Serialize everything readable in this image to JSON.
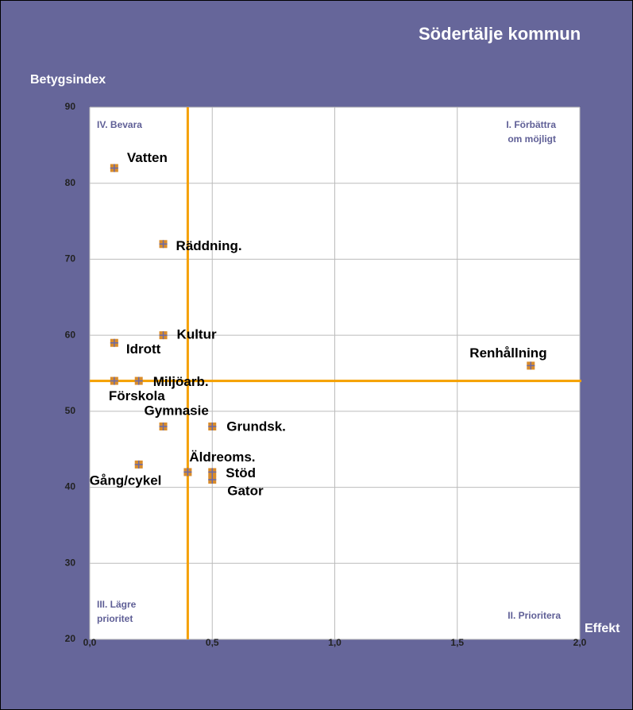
{
  "chart_data": {
    "type": "scatter",
    "title": "Södertälje kommun",
    "ylabel": "Betygsindex",
    "xlabel": "Effekt",
    "series": [
      {
        "color": "#d98c2b",
        "labels": [
          "Vatten",
          "Räddning.",
          "Kultur",
          "Idrott",
          "Förskola",
          "Miljöarb.",
          "Gymnasie",
          "Grundsk.",
          "Gång/cykel",
          "Äldreoms.",
          "Stöd",
          "Gator",
          "Renhållning"
        ],
        "x": [
          0.1,
          0.3,
          0.3,
          0.1,
          0.1,
          0.2,
          0.3,
          0.5,
          0.2,
          0.4,
          0.5,
          0.5,
          1.8
        ],
        "values": [
          82,
          72,
          60,
          59,
          54,
          54,
          48,
          48,
          43,
          42,
          42,
          41,
          56
        ]
      }
    ],
    "reference_lines": {
      "x": 0.4,
      "y": 54,
      "color": "#f5a000"
    },
    "quadrant_labels": [
      [
        "IV. Bevara"
      ],
      [
        "I. Förbättra",
        "om möjligt"
      ],
      [
        "III. Lägre",
        "prioritet"
      ],
      [
        "II. Prioritera"
      ]
    ],
    "xlim": [
      0,
      2.0
    ],
    "ylim": [
      20,
      90
    ],
    "xticks": [
      {
        "value": 0,
        "label": "0,0"
      },
      {
        "value": 0.5,
        "label": "0,5"
      },
      {
        "value": 1.0,
        "label": "1,0"
      },
      {
        "value": 1.5,
        "label": "1,5"
      },
      {
        "value": 2.0,
        "label": "2,0"
      }
    ],
    "yticks": [
      20,
      30,
      40,
      50,
      60,
      70,
      80,
      90
    ],
    "grid": true
  }
}
